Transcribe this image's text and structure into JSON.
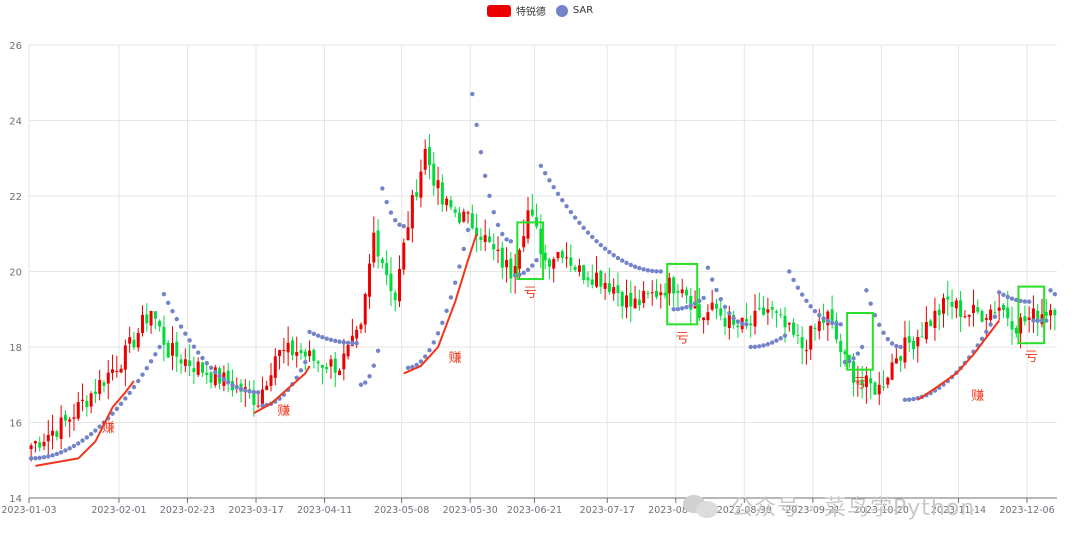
{
  "legend": {
    "candles": "特锐德",
    "sar": "SAR"
  },
  "watermark": "公众号 · 菜鸟学Python",
  "colors": {
    "up": "#ec0000",
    "down": "#00da3c",
    "sar": "#7384c8",
    "trend": "#f0361a",
    "box": "#28e028",
    "grid": "#e6e6e6",
    "axis": "#6e7079"
  },
  "chart_data": {
    "type": "candlestick",
    "ylim": [
      14,
      26
    ],
    "yticks": [
      14,
      16,
      18,
      20,
      22,
      24,
      26
    ],
    "grid": true,
    "legend_position": "top-center",
    "xtick_labels": [
      "2023-01-03",
      "2023-02-01",
      "2023-02-23",
      "2023-03-17",
      "2023-04-11",
      "2023-05-08",
      "2023-05-30",
      "2023-06-21",
      "2023-07-17",
      "2023-08-08",
      "2023-08-30",
      "2023-09-21",
      "2023-10-20",
      "2023-11-14",
      "2023-12-06"
    ],
    "xtick_index": [
      0,
      21,
      37,
      53,
      69,
      87,
      103,
      118,
      135,
      151,
      167,
      183,
      199,
      217,
      233
    ],
    "n": 240,
    "close_anchors": [
      [
        0,
        15.4
      ],
      [
        8,
        16.0
      ],
      [
        15,
        16.9
      ],
      [
        22,
        17.8
      ],
      [
        28,
        19.0
      ],
      [
        32,
        17.9
      ],
      [
        40,
        17.4
      ],
      [
        47,
        17.0
      ],
      [
        53,
        16.6
      ],
      [
        57,
        17.8
      ],
      [
        62,
        17.9
      ],
      [
        67,
        17.6
      ],
      [
        72,
        17.5
      ],
      [
        77,
        18.4
      ],
      [
        80,
        21.0
      ],
      [
        85,
        19.3
      ],
      [
        88,
        21.3
      ],
      [
        92,
        23.2
      ],
      [
        96,
        21.8
      ],
      [
        100,
        21.5
      ],
      [
        104,
        21.2
      ],
      [
        108,
        20.5
      ],
      [
        112,
        20.0
      ],
      [
        116,
        21.6
      ],
      [
        118,
        21.0
      ],
      [
        120,
        20.3
      ],
      [
        124,
        20.6
      ],
      [
        128,
        20.0
      ],
      [
        132,
        19.9
      ],
      [
        136,
        19.6
      ],
      [
        140,
        19.1
      ],
      [
        144,
        19.3
      ],
      [
        148,
        19.6
      ],
      [
        152,
        19.7
      ],
      [
        156,
        18.8
      ],
      [
        160,
        19.0
      ],
      [
        164,
        18.5
      ],
      [
        168,
        18.6
      ],
      [
        172,
        19.0
      ],
      [
        176,
        18.5
      ],
      [
        180,
        18.0
      ],
      [
        184,
        18.6
      ],
      [
        186,
        18.8
      ],
      [
        190,
        17.6
      ],
      [
        194,
        17.0
      ],
      [
        198,
        16.9
      ],
      [
        202,
        17.8
      ],
      [
        206,
        18.2
      ],
      [
        210,
        18.7
      ],
      [
        214,
        19.2
      ],
      [
        218,
        18.9
      ],
      [
        222,
        18.9
      ],
      [
        226,
        19.1
      ],
      [
        230,
        18.6
      ],
      [
        234,
        18.8
      ],
      [
        239,
        19.1
      ]
    ],
    "sar_segments": [
      {
        "from": 0,
        "to": 30,
        "start": 15.05,
        "end": 18.0,
        "dir": "up"
      },
      {
        "from": 31,
        "to": 53,
        "start": 19.4,
        "end": 16.8,
        "dir": "down"
      },
      {
        "from": 54,
        "to": 64,
        "start": 16.45,
        "end": 17.6,
        "dir": "up"
      },
      {
        "from": 65,
        "to": 76,
        "start": 18.4,
        "end": 18.1,
        "dir": "down"
      },
      {
        "from": 77,
        "to": 81,
        "start": 17.0,
        "end": 17.9,
        "dir": "up"
      },
      {
        "from": 82,
        "to": 87,
        "start": 22.2,
        "end": 21.2,
        "dir": "down"
      },
      {
        "from": 88,
        "to": 102,
        "start": 17.45,
        "end": 21.1,
        "dir": "up"
      },
      {
        "from": 103,
        "to": 112,
        "start": 24.7,
        "end": 20.8,
        "dir": "down"
      },
      {
        "from": 113,
        "to": 118,
        "start": 19.9,
        "end": 20.3,
        "dir": "up"
      },
      {
        "from": 119,
        "to": 147,
        "start": 22.8,
        "end": 20.0,
        "dir": "down"
      },
      {
        "from": 150,
        "to": 157,
        "start": 19.0,
        "end": 19.3,
        "dir": "up"
      },
      {
        "from": 158,
        "to": 167,
        "start": 20.1,
        "end": 18.6,
        "dir": "down"
      },
      {
        "from": 168,
        "to": 176,
        "start": 18.0,
        "end": 18.3,
        "dir": "up"
      },
      {
        "from": 177,
        "to": 189,
        "start": 20.0,
        "end": 18.6,
        "dir": "down"
      },
      {
        "from": 190,
        "to": 194,
        "start": 17.6,
        "end": 18.0,
        "dir": "up"
      },
      {
        "from": 195,
        "to": 203,
        "start": 19.5,
        "end": 18.0,
        "dir": "down"
      },
      {
        "from": 204,
        "to": 225,
        "start": 16.6,
        "end": 18.8,
        "dir": "up"
      },
      {
        "from": 226,
        "to": 233,
        "start": 19.45,
        "end": 19.2,
        "dir": "down"
      },
      {
        "from": 234,
        "to": 237,
        "start": 18.7,
        "end": 18.7,
        "dir": "up"
      },
      {
        "from": 238,
        "to": 239,
        "start": 19.5,
        "end": 19.4,
        "dir": "down"
      }
    ],
    "trend_lines": [
      {
        "points": [
          [
            1,
            14.85
          ],
          [
            6,
            14.95
          ],
          [
            11,
            15.05
          ],
          [
            15,
            15.5
          ],
          [
            19,
            16.4
          ],
          [
            22,
            16.8
          ],
          [
            24,
            17.1
          ]
        ],
        "label": "赚",
        "label_at": [
          18,
          15.75
        ]
      },
      {
        "points": [
          [
            52,
            16.25
          ],
          [
            56,
            16.5
          ],
          [
            60,
            16.9
          ],
          [
            64,
            17.3
          ],
          [
            65,
            17.5
          ]
        ],
        "label": "赚",
        "label_at": [
          59,
          16.2
        ]
      },
      {
        "points": [
          [
            87,
            17.3
          ],
          [
            91,
            17.5
          ],
          [
            95,
            18.0
          ],
          [
            99,
            19.2
          ],
          [
            102,
            20.3
          ],
          [
            104,
            21.0
          ]
        ],
        "label": "赚",
        "label_at": [
          99,
          17.6
        ]
      },
      {
        "points": [
          [
            207,
            16.6
          ],
          [
            211,
            16.9
          ],
          [
            216,
            17.3
          ],
          [
            220,
            17.8
          ],
          [
            224,
            18.4
          ],
          [
            226,
            18.7
          ]
        ],
        "label": "赚",
        "label_at": [
          221,
          16.6
        ]
      }
    ],
    "loss_boxes": [
      {
        "from": 114,
        "to": 119,
        "top": 21.3,
        "bottom": 19.8,
        "label": "亏"
      },
      {
        "from": 149,
        "to": 155,
        "top": 20.2,
        "bottom": 18.6,
        "label": "亏"
      },
      {
        "from": 191,
        "to": 196,
        "top": 18.9,
        "bottom": 17.4,
        "label": "亏"
      },
      {
        "from": 231,
        "to": 236,
        "top": 19.6,
        "bottom": 18.1,
        "label": "亏"
      }
    ]
  }
}
